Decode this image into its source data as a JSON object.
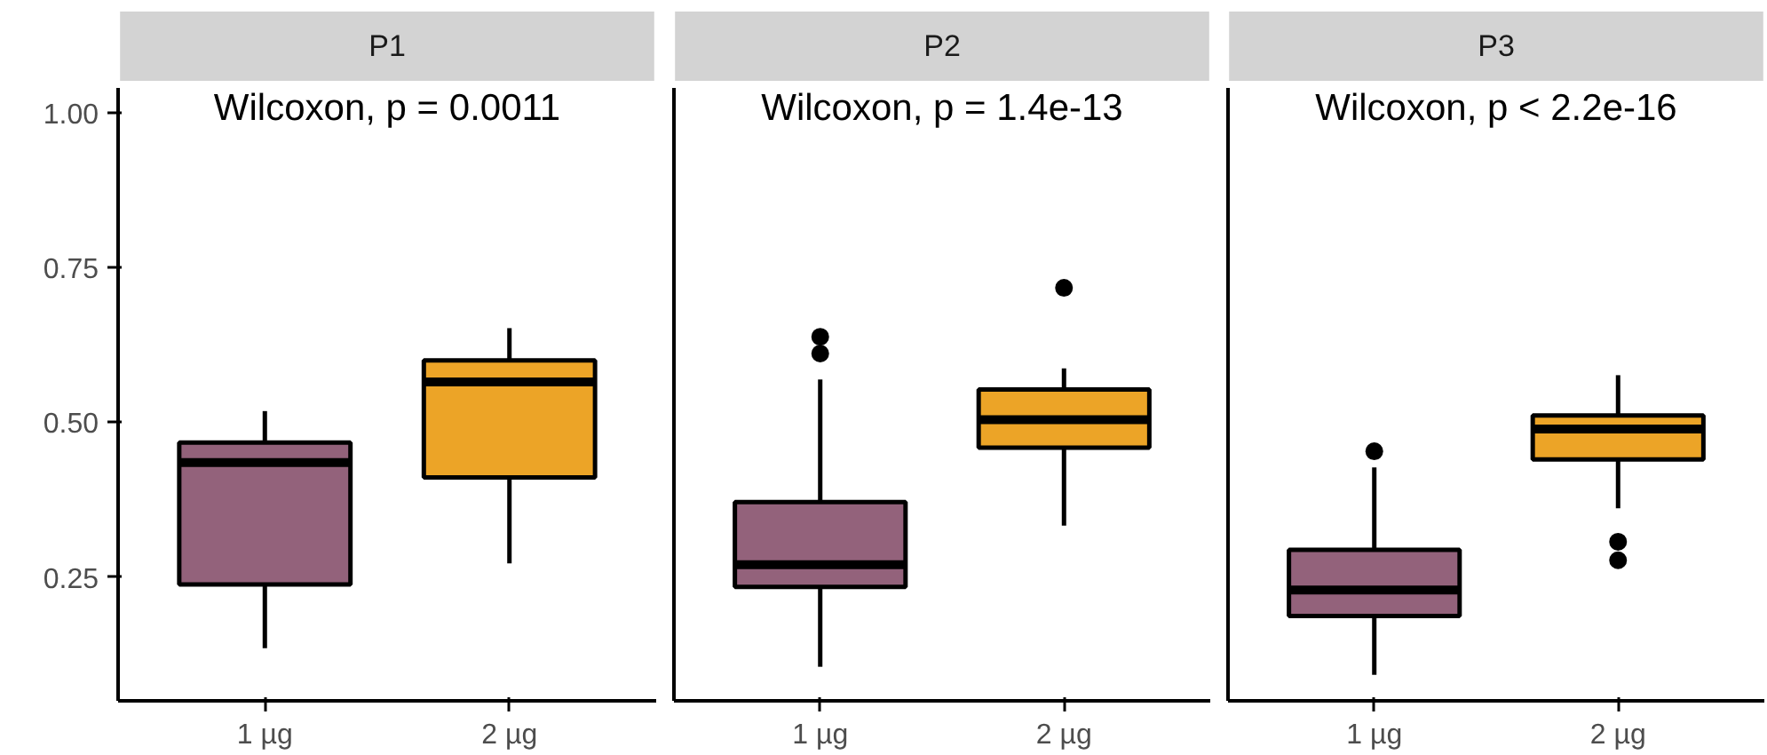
{
  "chart_data": [
    {
      "type": "box",
      "title": "P1",
      "annotations": [
        "Wilcoxon, p = 0.0011"
      ],
      "categories": [
        "1 µg",
        "2 µg"
      ],
      "colors": [
        "#93627b",
        "#eca427"
      ],
      "ylim": [
        0.05,
        1.04
      ],
      "yticks": [
        {
          "value": 0.25,
          "label": "0.25"
        },
        {
          "value": 0.5,
          "label": "0.50"
        },
        {
          "value": 0.75,
          "label": "0.75"
        },
        {
          "value": 1.0,
          "label": "1.00"
        }
      ],
      "boxes": [
        {
          "low": 0.135,
          "q1": 0.238,
          "median": 0.435,
          "q3": 0.467,
          "high": 0.518
        },
        {
          "low": 0.272,
          "q1": 0.411,
          "median": 0.565,
          "q3": 0.6,
          "high": 0.652
        }
      ]
    },
    {
      "type": "box",
      "title": "P2",
      "annotations": [
        "Wilcoxon, p = 1.4e-13"
      ],
      "categories": [
        "1 µg",
        "2 µg"
      ],
      "colors": [
        "#93627b",
        "#eca427"
      ],
      "ylim": [
        0.05,
        1.04
      ],
      "tick_labels": "x",
      "boxes": [
        {
          "low": 0.105,
          "q1": 0.234,
          "median": 0.27,
          "q3": 0.371,
          "high": 0.569,
          "outliers": [
            0.611,
            0.638
          ]
        },
        {
          "low": 0.333,
          "q1": 0.459,
          "median": 0.504,
          "q3": 0.553,
          "high": 0.587,
          "outliers": [
            0.717
          ]
        }
      ]
    },
    {
      "type": "box",
      "title": "P3",
      "annotations": [
        "Wilcoxon, p < 2.2e-16"
      ],
      "categories": [
        "1 µg",
        "2 µg"
      ],
      "colors": [
        "#93627b",
        "#eca427"
      ],
      "ylim": [
        0.05,
        1.04
      ],
      "tick_labels": "x",
      "boxes": [
        {
          "low": 0.092,
          "q1": 0.187,
          "median": 0.229,
          "q3": 0.294,
          "high": 0.427,
          "outliers": [
            0.453
          ]
        },
        {
          "low": 0.361,
          "q1": 0.44,
          "median": 0.489,
          "q3": 0.511,
          "high": 0.576,
          "outliers": [
            0.277,
            0.307
          ]
        }
      ]
    }
  ]
}
